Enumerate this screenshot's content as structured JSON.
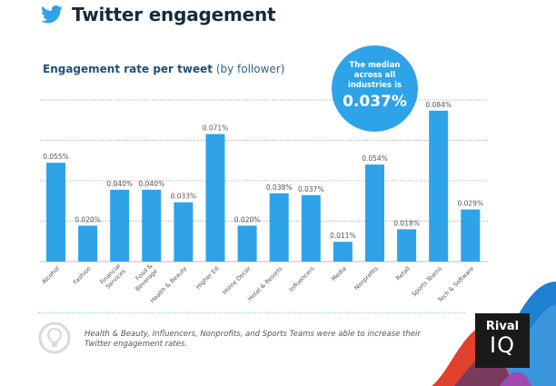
{
  "header": {
    "title": "Twitter engagement",
    "icon": "twitter-bird-icon"
  },
  "subtitle": {
    "bold": "Engagement rate per tweet",
    "light": "(by follower)"
  },
  "median_callout": {
    "text": "The median across all industries is",
    "value": "0.037%"
  },
  "footer": {
    "icon": "lightbulb-icon",
    "note": "Health & Beauty, Influencers, Nonprofits, and Sports Teams were able to increase their Twitter engagement rates."
  },
  "logo": {
    "line1": "Rival",
    "line2": "IQ"
  },
  "colors": {
    "bar": "#2ea3e8",
    "title": "#152a3d",
    "subtitle": "#1f4f77"
  },
  "chart_data": {
    "type": "bar",
    "title": "Engagement rate per tweet (by follower)",
    "xlabel": "",
    "ylabel": "",
    "ylim": [
      0,
      0.09
    ],
    "grid": true,
    "gridlines": [
      0.0225,
      0.045,
      0.0675,
      0.09
    ],
    "categories": [
      "Alcohol",
      "Fashion",
      "Financial Services",
      "Food & Beverage",
      "Health & Beauty",
      "Higher Ed",
      "Home Decor",
      "Hotel & Resorts",
      "Influencers",
      "Media",
      "Nonprofits",
      "Retail",
      "Sports Teams",
      "Tech & Software"
    ],
    "category_lines": [
      [
        "Alcohol"
      ],
      [
        "Fashion"
      ],
      [
        "Financial",
        "Services"
      ],
      [
        "Food &",
        "Beverage"
      ],
      [
        "Health & Beauty"
      ],
      [
        "Higher Ed"
      ],
      [
        "Home Decor"
      ],
      [
        "Hotel & Resorts"
      ],
      [
        "Influencers"
      ],
      [
        "Media"
      ],
      [
        "Nonprofits"
      ],
      [
        "Retail"
      ],
      [
        "Sports Teams"
      ],
      [
        "Tech & Software"
      ]
    ],
    "values": [
      0.055,
      0.02,
      0.04,
      0.04,
      0.033,
      0.071,
      0.02,
      0.038,
      0.037,
      0.011,
      0.054,
      0.018,
      0.084,
      0.029
    ],
    "labels": [
      "0.055%",
      "0.020%",
      "0.040%",
      "0.040%",
      "0.033%",
      "0.071%",
      "0.020%",
      "0.038%",
      "0.037%",
      "0.011%",
      "0.054%",
      "0.018%",
      "0.084%",
      "0.029%"
    ]
  }
}
